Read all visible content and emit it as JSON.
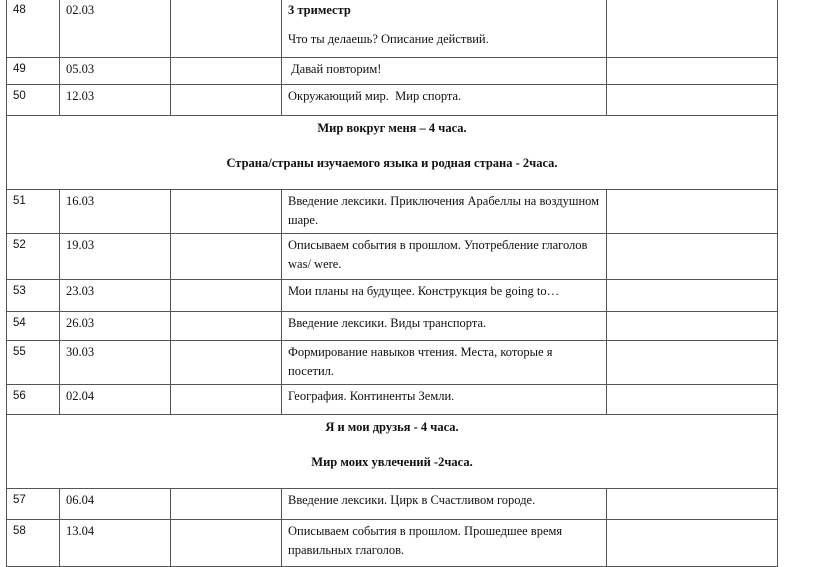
{
  "rows": [
    {
      "num": "48",
      "date": "02.03",
      "heading": "3 триместр",
      "topic": "Что ты делаешь? Описание действий."
    },
    {
      "num": "49",
      "date": "05.03",
      "topic": " Давай повторим!"
    },
    {
      "num": "50",
      "date": "12.03",
      "topic": "Окружающий мир.  Мир спорта."
    },
    {
      "num": "51",
      "date": "16.03",
      "topic": "Введение лексики.  Приключения Арабеллы на воздушном шаре."
    },
    {
      "num": "52",
      "date": "19.03",
      "topic": "Описываем события в прошлом. Употребление глаголов was/ were."
    },
    {
      "num": "53",
      "date": "23.03",
      "topic": "Мои планы на будущее.  Конструкция be going to…"
    },
    {
      "num": "54",
      "date": "26.03",
      "topic": "Введение лексики. Виды транспорта."
    },
    {
      "num": "55",
      "date": "30.03",
      "topic": "Формирование навыков чтения. Места, которые я посетил."
    },
    {
      "num": "56",
      "date": "02.04",
      "topic": "География. Континенты Земли."
    },
    {
      "num": "57",
      "date": "06.04",
      "topic": "Введение лексики. Цирк в Счастливом городе."
    },
    {
      "num": "58",
      "date": "13.04",
      "topic": "Описываем события в прошлом. Прошедшее время правильных глаголов."
    }
  ],
  "sections": [
    {
      "line1": "Мир вокруг меня – 4 часа.",
      "line2": "Страна/страны изучаемого языка и родная страна - 2часа."
    },
    {
      "line1": "Я и мои друзья - 4 часа.",
      "line2": "Мир моих увлечений -2часа."
    }
  ]
}
